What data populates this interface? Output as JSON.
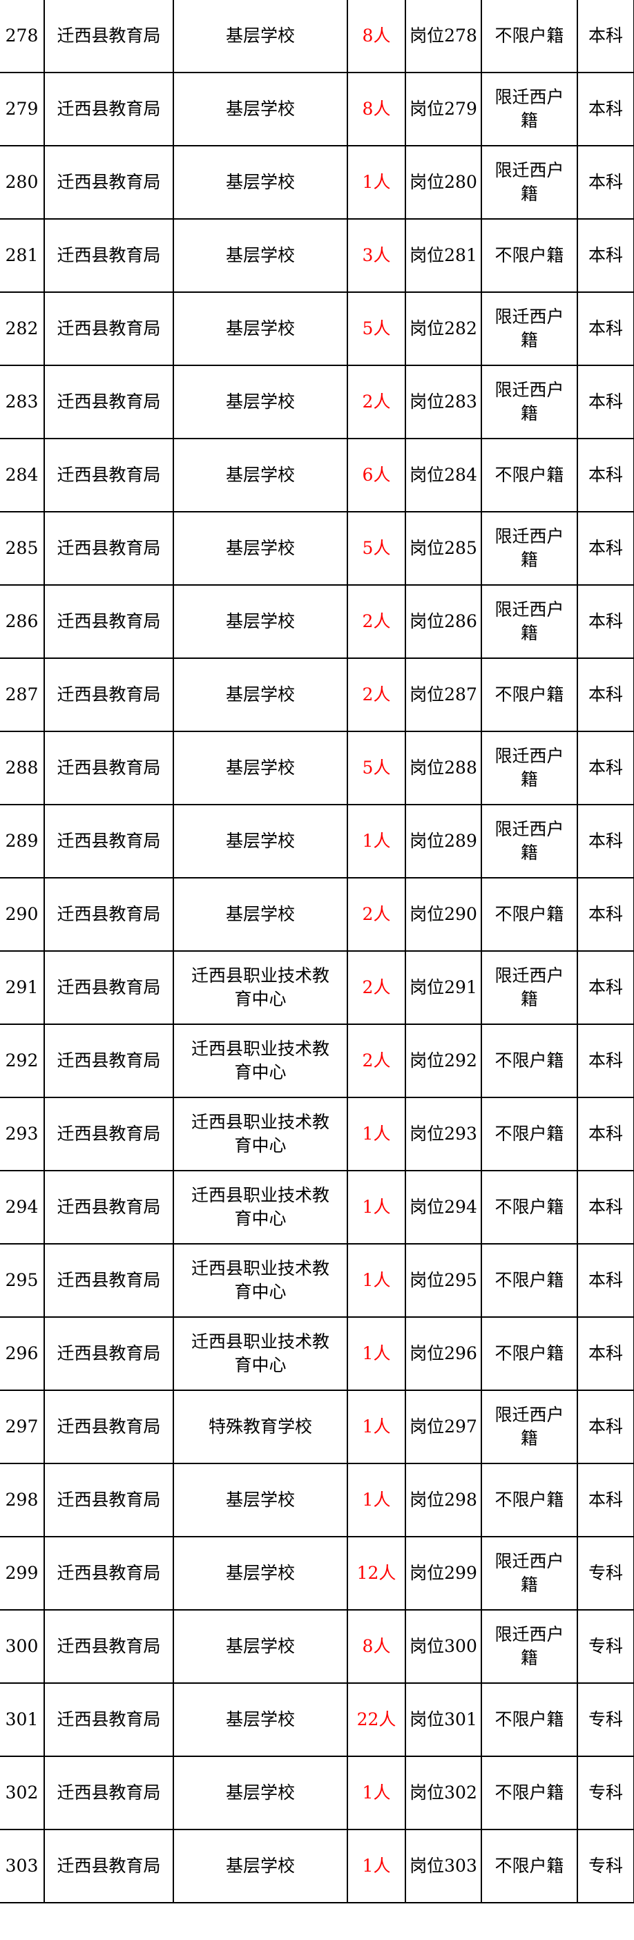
{
  "colors": {
    "count_text": "#ff0000",
    "text": "#000000",
    "border": "#000000"
  },
  "rows": [
    {
      "no": "278",
      "unit": "迁西县教育局",
      "school": "基层学校",
      "count": "8人",
      "post": "岗位278",
      "residency": "不限户籍",
      "education": "本科"
    },
    {
      "no": "279",
      "unit": "迁西县教育局",
      "school": "基层学校",
      "count": "8人",
      "post": "岗位279",
      "residency": "限迁西户籍",
      "education": "本科"
    },
    {
      "no": "280",
      "unit": "迁西县教育局",
      "school": "基层学校",
      "count": "1人",
      "post": "岗位280",
      "residency": "限迁西户籍",
      "education": "本科"
    },
    {
      "no": "281",
      "unit": "迁西县教育局",
      "school": "基层学校",
      "count": "3人",
      "post": "岗位281",
      "residency": "不限户籍",
      "education": "本科"
    },
    {
      "no": "282",
      "unit": "迁西县教育局",
      "school": "基层学校",
      "count": "5人",
      "post": "岗位282",
      "residency": "限迁西户籍",
      "education": "本科"
    },
    {
      "no": "283",
      "unit": "迁西县教育局",
      "school": "基层学校",
      "count": "2人",
      "post": "岗位283",
      "residency": "限迁西户籍",
      "education": "本科"
    },
    {
      "no": "284",
      "unit": "迁西县教育局",
      "school": "基层学校",
      "count": "6人",
      "post": "岗位284",
      "residency": "不限户籍",
      "education": "本科"
    },
    {
      "no": "285",
      "unit": "迁西县教育局",
      "school": "基层学校",
      "count": "5人",
      "post": "岗位285",
      "residency": "限迁西户籍",
      "education": "本科"
    },
    {
      "no": "286",
      "unit": "迁西县教育局",
      "school": "基层学校",
      "count": "2人",
      "post": "岗位286",
      "residency": "限迁西户籍",
      "education": "本科"
    },
    {
      "no": "287",
      "unit": "迁西县教育局",
      "school": "基层学校",
      "count": "2人",
      "post": "岗位287",
      "residency": "不限户籍",
      "education": "本科"
    },
    {
      "no": "288",
      "unit": "迁西县教育局",
      "school": "基层学校",
      "count": "5人",
      "post": "岗位288",
      "residency": "限迁西户籍",
      "education": "本科"
    },
    {
      "no": "289",
      "unit": "迁西县教育局",
      "school": "基层学校",
      "count": "1人",
      "post": "岗位289",
      "residency": "限迁西户籍",
      "education": "本科"
    },
    {
      "no": "290",
      "unit": "迁西县教育局",
      "school": "基层学校",
      "count": "2人",
      "post": "岗位290",
      "residency": "不限户籍",
      "education": "本科"
    },
    {
      "no": "291",
      "unit": "迁西县教育局",
      "school": "迁西县职业技术教育中心",
      "count": "2人",
      "post": "岗位291",
      "residency": "限迁西户籍",
      "education": "本科"
    },
    {
      "no": "292",
      "unit": "迁西县教育局",
      "school": "迁西县职业技术教育中心",
      "count": "2人",
      "post": "岗位292",
      "residency": "不限户籍",
      "education": "本科"
    },
    {
      "no": "293",
      "unit": "迁西县教育局",
      "school": "迁西县职业技术教育中心",
      "count": "1人",
      "post": "岗位293",
      "residency": "不限户籍",
      "education": "本科"
    },
    {
      "no": "294",
      "unit": "迁西县教育局",
      "school": "迁西县职业技术教育中心",
      "count": "1人",
      "post": "岗位294",
      "residency": "不限户籍",
      "education": "本科"
    },
    {
      "no": "295",
      "unit": "迁西县教育局",
      "school": "迁西县职业技术教育中心",
      "count": "1人",
      "post": "岗位295",
      "residency": "不限户籍",
      "education": "本科"
    },
    {
      "no": "296",
      "unit": "迁西县教育局",
      "school": "迁西县职业技术教育中心",
      "count": "1人",
      "post": "岗位296",
      "residency": "不限户籍",
      "education": "本科"
    },
    {
      "no": "297",
      "unit": "迁西县教育局",
      "school": "特殊教育学校",
      "count": "1人",
      "post": "岗位297",
      "residency": "限迁西户籍",
      "education": "本科"
    },
    {
      "no": "298",
      "unit": "迁西县教育局",
      "school": "基层学校",
      "count": "1人",
      "post": "岗位298",
      "residency": "不限户籍",
      "education": "本科"
    },
    {
      "no": "299",
      "unit": "迁西县教育局",
      "school": "基层学校",
      "count": "12人",
      "post": "岗位299",
      "residency": "限迁西户籍",
      "education": "专科"
    },
    {
      "no": "300",
      "unit": "迁西县教育局",
      "school": "基层学校",
      "count": "8人",
      "post": "岗位300",
      "residency": "限迁西户籍",
      "education": "专科"
    },
    {
      "no": "301",
      "unit": "迁西县教育局",
      "school": "基层学校",
      "count": "22人",
      "post": "岗位301",
      "residency": "不限户籍",
      "education": "专科"
    },
    {
      "no": "302",
      "unit": "迁西县教育局",
      "school": "基层学校",
      "count": "1人",
      "post": "岗位302",
      "residency": "不限户籍",
      "education": "专科"
    },
    {
      "no": "303",
      "unit": "迁西县教育局",
      "school": "基层学校",
      "count": "1人",
      "post": "岗位303",
      "residency": "不限户籍",
      "education": "专科"
    }
  ]
}
